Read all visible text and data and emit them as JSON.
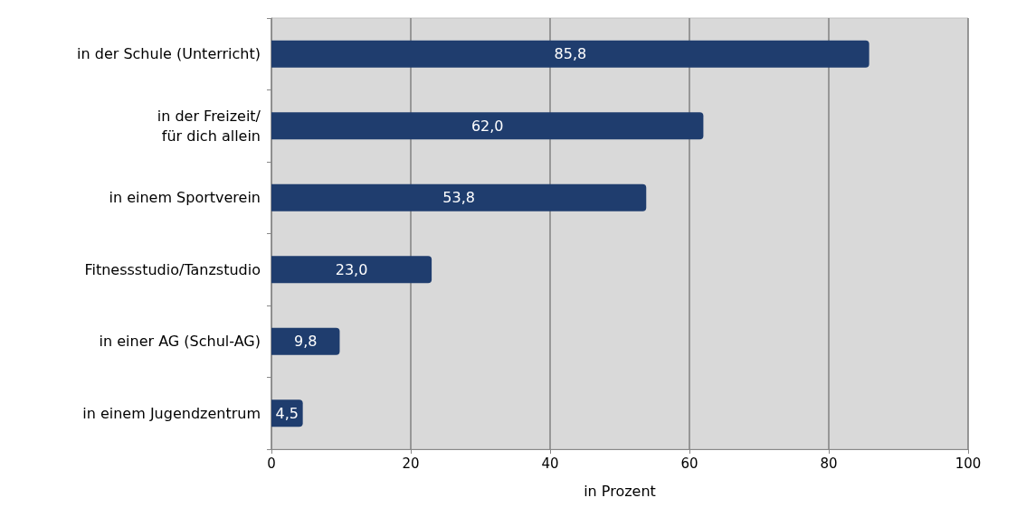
{
  "chart_data": {
    "type": "bar",
    "orientation": "horizontal",
    "categories": [
      "in der Schule (Unterricht)",
      "in der Freizeit/\nfür dich allein",
      "in einem Sportverein",
      "Fitnessstudio/Tanzstudio",
      "in einer AG (Schul-AG)",
      "in einem Jugendzentrum"
    ],
    "values": [
      85.8,
      62.0,
      53.8,
      23.0,
      9.8,
      4.5
    ],
    "value_labels": [
      "85,8",
      "62,0",
      "53,8",
      "23,0",
      "9,8",
      "4,5"
    ],
    "color": "#1f3d6e",
    "xlabel": "in Prozent",
    "xlim": [
      0,
      100
    ],
    "xticks": [
      0,
      20,
      40,
      60,
      80,
      100
    ],
    "grid": "x"
  }
}
